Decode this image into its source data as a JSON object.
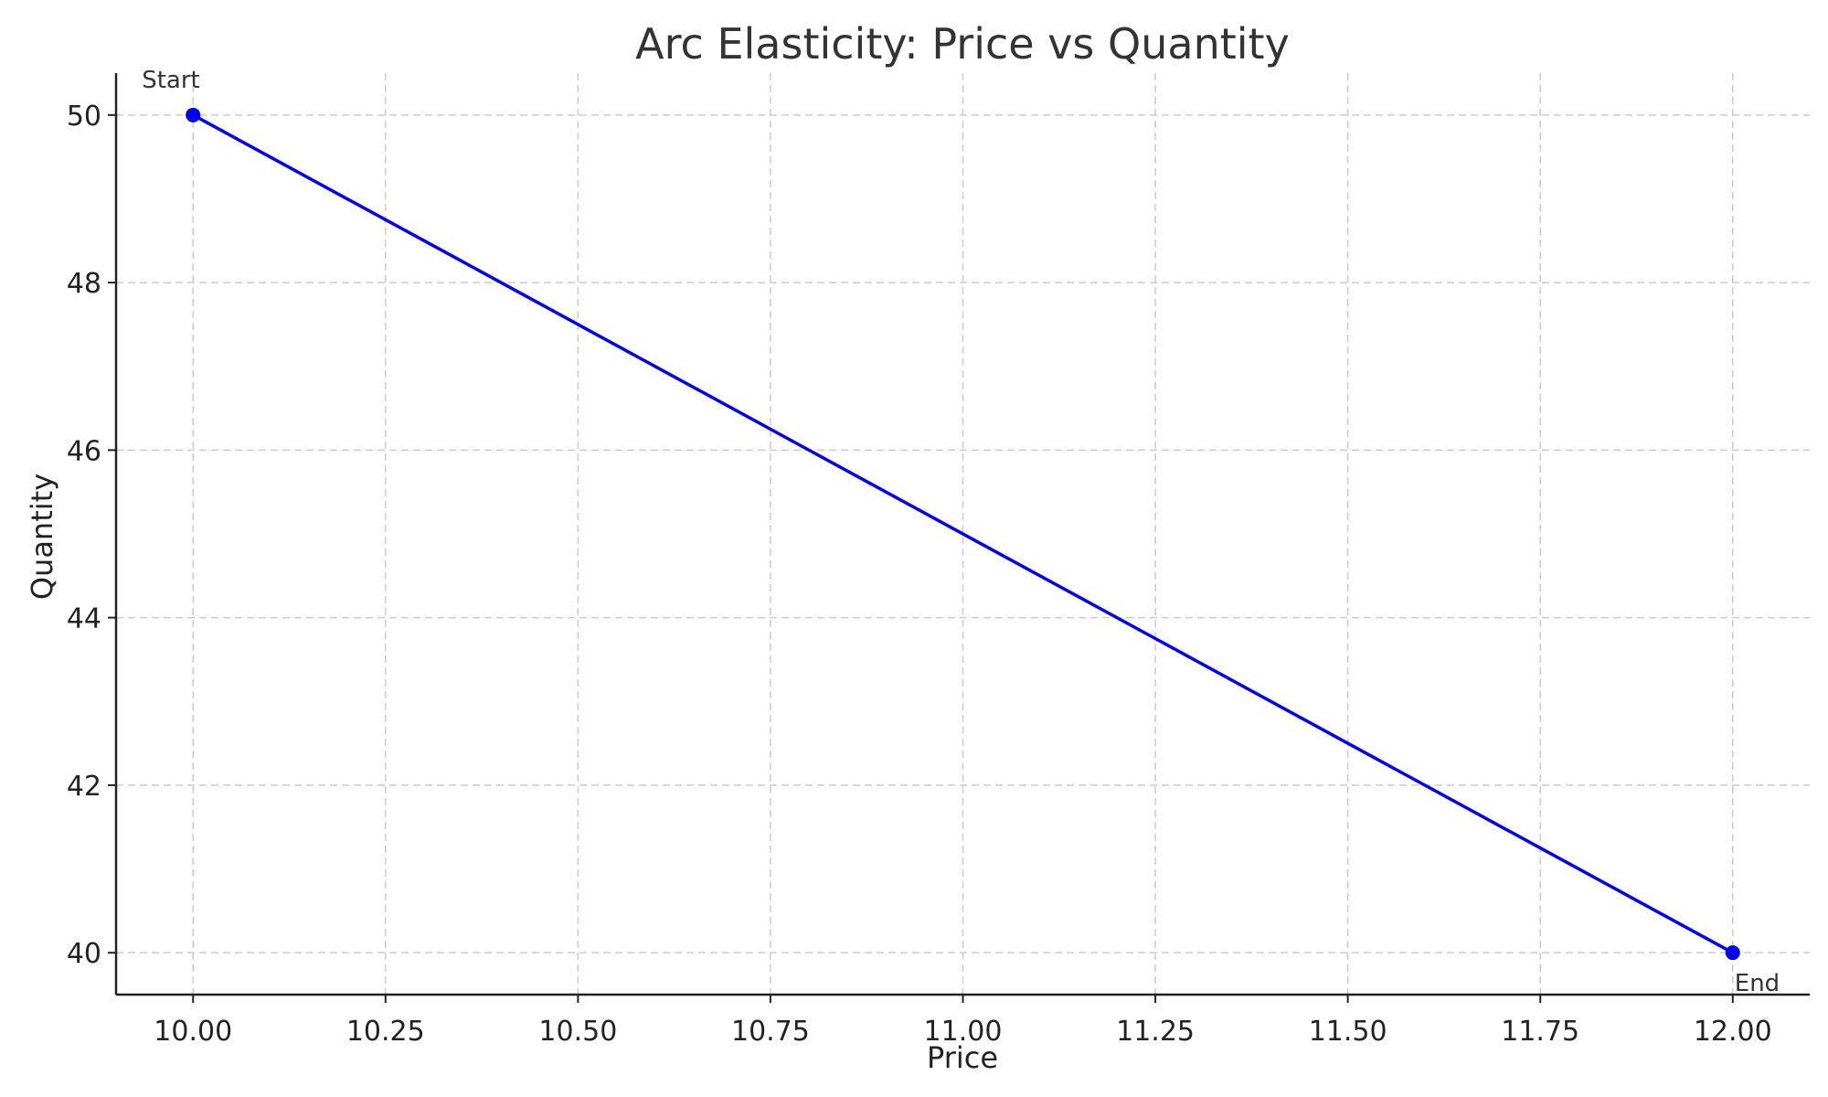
{
  "chart_data": {
    "type": "line",
    "title": "Arc Elasticity: Price vs Quantity",
    "xlabel": "Price",
    "ylabel": "Quantity",
    "xlim": [
      9.9,
      12.1
    ],
    "ylim": [
      39.5,
      50.5
    ],
    "x_ticks": [
      10.0,
      10.25,
      10.5,
      10.75,
      11.0,
      11.25,
      11.5,
      11.75,
      12.0
    ],
    "x_tick_labels": [
      "10.00",
      "10.25",
      "10.50",
      "10.75",
      "11.00",
      "11.25",
      "11.50",
      "11.75",
      "12.00"
    ],
    "y_ticks": [
      40,
      42,
      44,
      46,
      48,
      50
    ],
    "y_tick_labels": [
      "40",
      "42",
      "44",
      "46",
      "48",
      "50"
    ],
    "grid": true,
    "series": [
      {
        "color": "#0000ee",
        "x": [
          10.0,
          12.0
        ],
        "y": [
          50,
          40
        ],
        "marker": "circle"
      }
    ],
    "annotations": [
      {
        "text": "Start",
        "x": 10.0,
        "y": 50,
        "anchor": "above-left"
      },
      {
        "text": "End",
        "x": 12.0,
        "y": 40,
        "anchor": "below-right"
      }
    ]
  }
}
